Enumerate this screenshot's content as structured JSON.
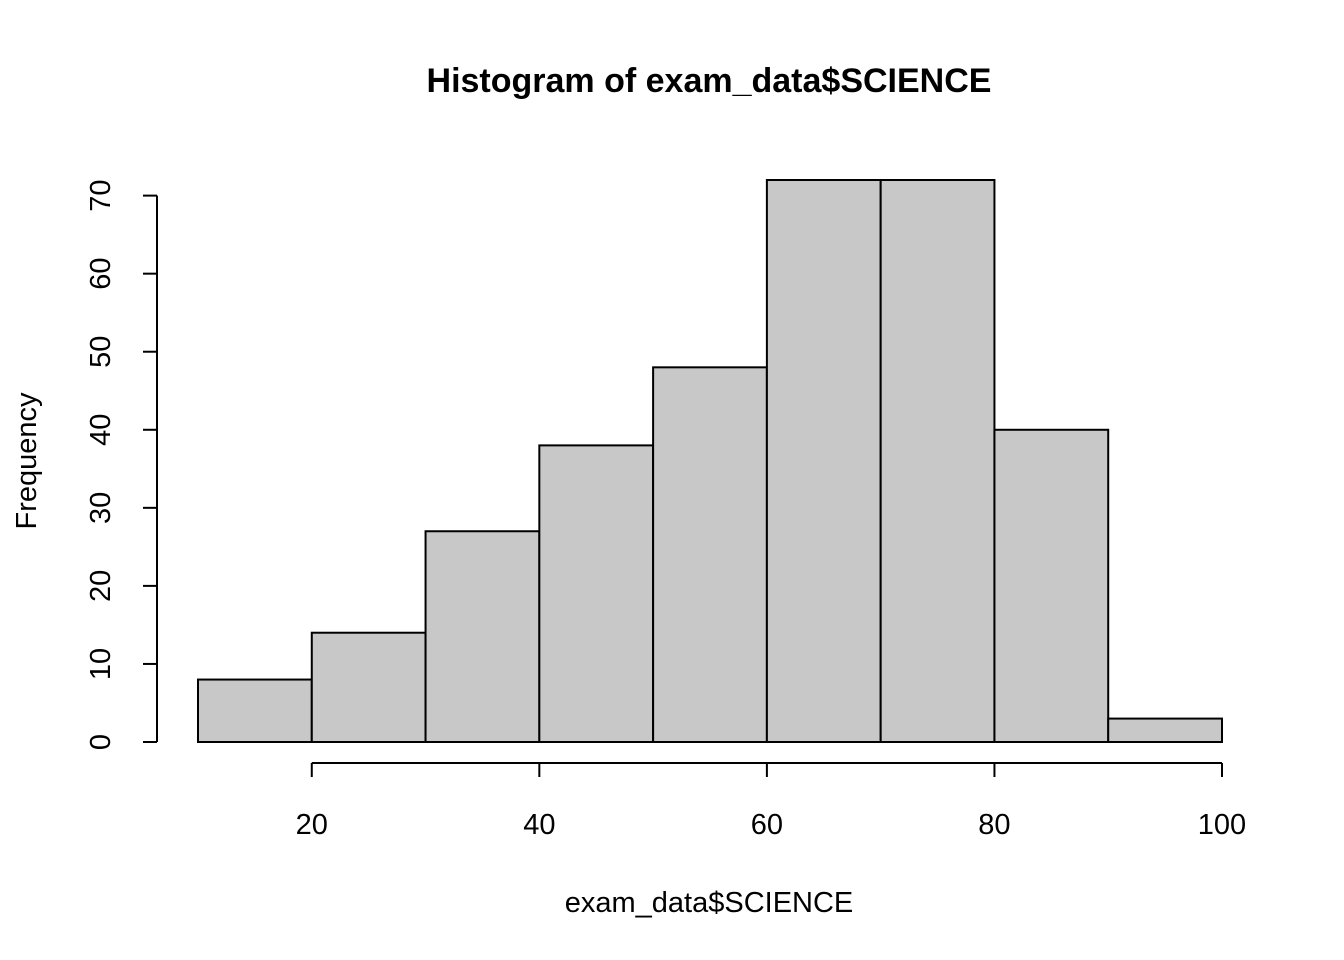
{
  "chart_data": {
    "type": "bar",
    "title": "Histogram of exam_data$SCIENCE",
    "xlabel": "exam_data$SCIENCE",
    "ylabel": "Frequency",
    "bins": [
      {
        "start": 10,
        "end": 20,
        "count": 8
      },
      {
        "start": 20,
        "end": 30,
        "count": 14
      },
      {
        "start": 30,
        "end": 40,
        "count": 27
      },
      {
        "start": 40,
        "end": 50,
        "count": 38
      },
      {
        "start": 50,
        "end": 60,
        "count": 48
      },
      {
        "start": 60,
        "end": 70,
        "count": 72
      },
      {
        "start": 70,
        "end": 80,
        "count": 72
      },
      {
        "start": 80,
        "end": 90,
        "count": 40
      },
      {
        "start": 90,
        "end": 100,
        "count": 3
      }
    ],
    "xlim": [
      10,
      100
    ],
    "ylim": [
      0,
      72
    ],
    "x_ticks": [
      20,
      40,
      60,
      80,
      100
    ],
    "y_ticks": [
      0,
      10,
      20,
      30,
      40,
      50,
      60,
      70
    ],
    "bar_color": "#c8c8c8",
    "grid": false,
    "legend": "none"
  }
}
